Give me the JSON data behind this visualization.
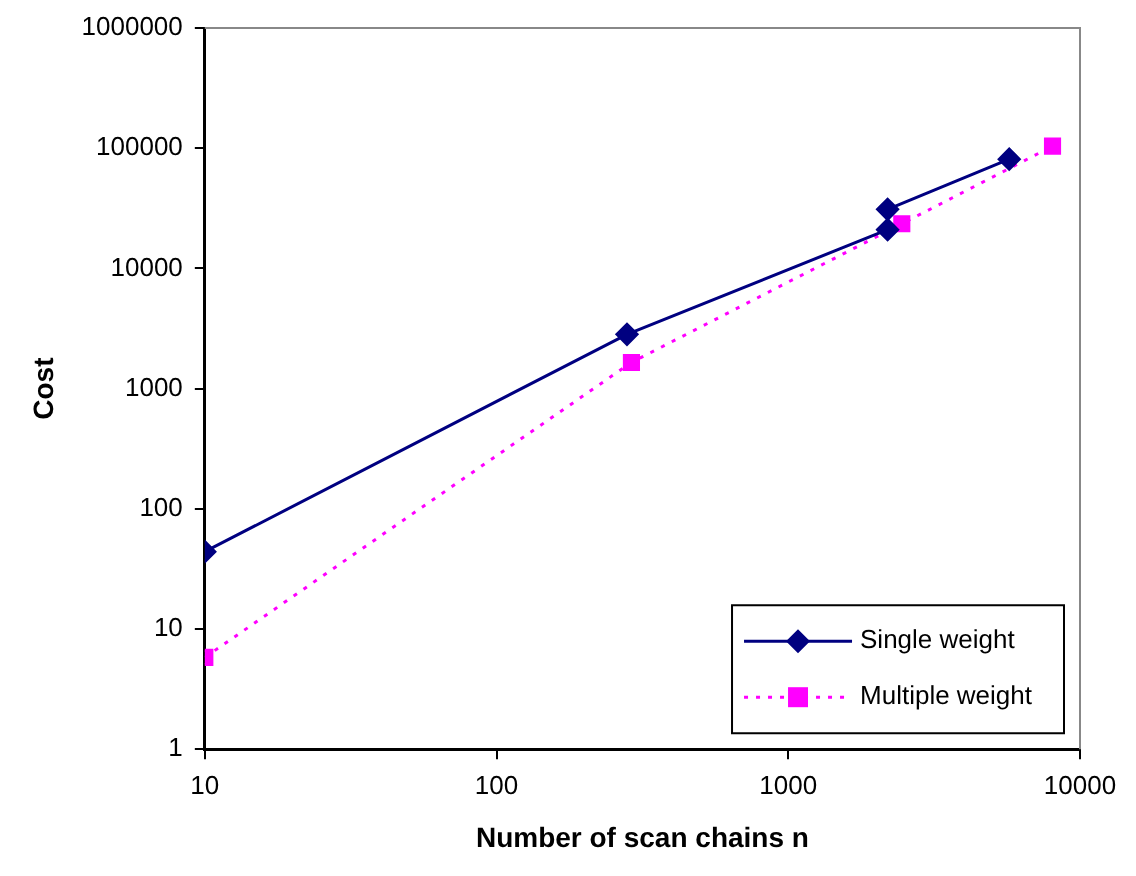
{
  "chart_data": {
    "type": "line",
    "xlabel": "Number of scan chains n",
    "ylabel": "Cost",
    "log": "xy",
    "xlim": [
      10,
      10000
    ],
    "xticks": [
      10,
      100,
      1000,
      10000
    ],
    "ylim": [
      1,
      1000000
    ],
    "yticks": [
      1,
      10,
      100,
      1000,
      10000,
      100000,
      1000000
    ],
    "grid": false,
    "legend": "bottom right",
    "series": [
      {
        "name": "Single weight",
        "color": "#000080",
        "marker": "diamond",
        "line_style": "solid",
        "x": [
          10,
          280,
          2190,
          2190,
          5720
        ],
        "values": [
          44,
          2830,
          21000,
          31000,
          81000
        ]
      },
      {
        "name": "Multiple weight",
        "color": "#ff00ff",
        "marker": "square",
        "line_style": "dotted",
        "x": [
          10,
          290,
          2450,
          8050
        ],
        "values": [
          5.8,
          1650,
          23500,
          104000
        ]
      }
    ]
  }
}
